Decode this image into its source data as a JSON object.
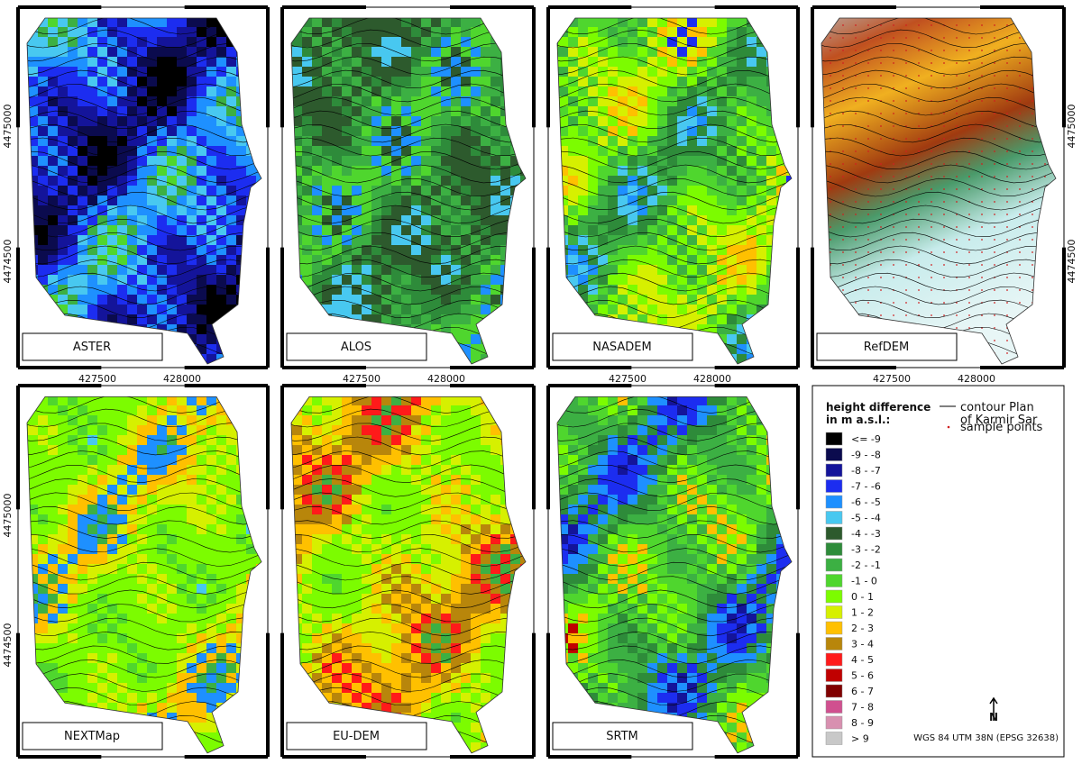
{
  "panels": [
    {
      "label": "ASTER"
    },
    {
      "label": "ALOS"
    },
    {
      "label": "NASADEM"
    },
    {
      "label": "RefDEM"
    },
    {
      "label": "NEXTMap"
    },
    {
      "label": "EU-DEM"
    },
    {
      "label": "SRTM"
    }
  ],
  "coordinates": {
    "easting": [
      "427500",
      "428000"
    ],
    "northing": [
      "4475000",
      "4474500"
    ]
  },
  "legend": {
    "title": [
      "height difference",
      "in m a.s.l.:"
    ],
    "contour": [
      "contour Plan",
      "of Karmir Sar"
    ],
    "sample_points": "sample points",
    "classes": [
      {
        "label": "<= -9",
        "color": "#000000"
      },
      {
        "label": "-9 - -8",
        "color": "#0b0b4e"
      },
      {
        "label": "-8 - -7",
        "color": "#14149a"
      },
      {
        "label": "-7 - -6",
        "color": "#1c2df0"
      },
      {
        "label": "-6 - -5",
        "color": "#1e90ff"
      },
      {
        "label": "-5 - -4",
        "color": "#48c8f0"
      },
      {
        "label": "-4 - -3",
        "color": "#2d5a2d"
      },
      {
        "label": "-3 - -2",
        "color": "#2e8b3a"
      },
      {
        "label": "-2 - -1",
        "color": "#3cb043"
      },
      {
        "label": "-1 - 0",
        "color": "#4fd62e"
      },
      {
        "label": "0 - 1",
        "color": "#7cfc00"
      },
      {
        "label": "1 - 2",
        "color": "#d6f000"
      },
      {
        "label": "2 - 3",
        "color": "#ffc000"
      },
      {
        "label": "3 - 4",
        "color": "#b8860b"
      },
      {
        "label": "4 - 5",
        "color": "#ff1a1a"
      },
      {
        "label": "5 - 6",
        "color": "#c00000"
      },
      {
        "label": "6 - 7",
        "color": "#800000"
      },
      {
        "label": "7 - 8",
        "color": "#d0508f"
      },
      {
        "label": "8 - 9",
        "color": "#d890b0"
      },
      {
        "label": "> 9",
        "color": "#c8c8c8"
      }
    ],
    "north": "N",
    "crs": "WGS 84 UTM 38N (EPSG 32638)"
  }
}
